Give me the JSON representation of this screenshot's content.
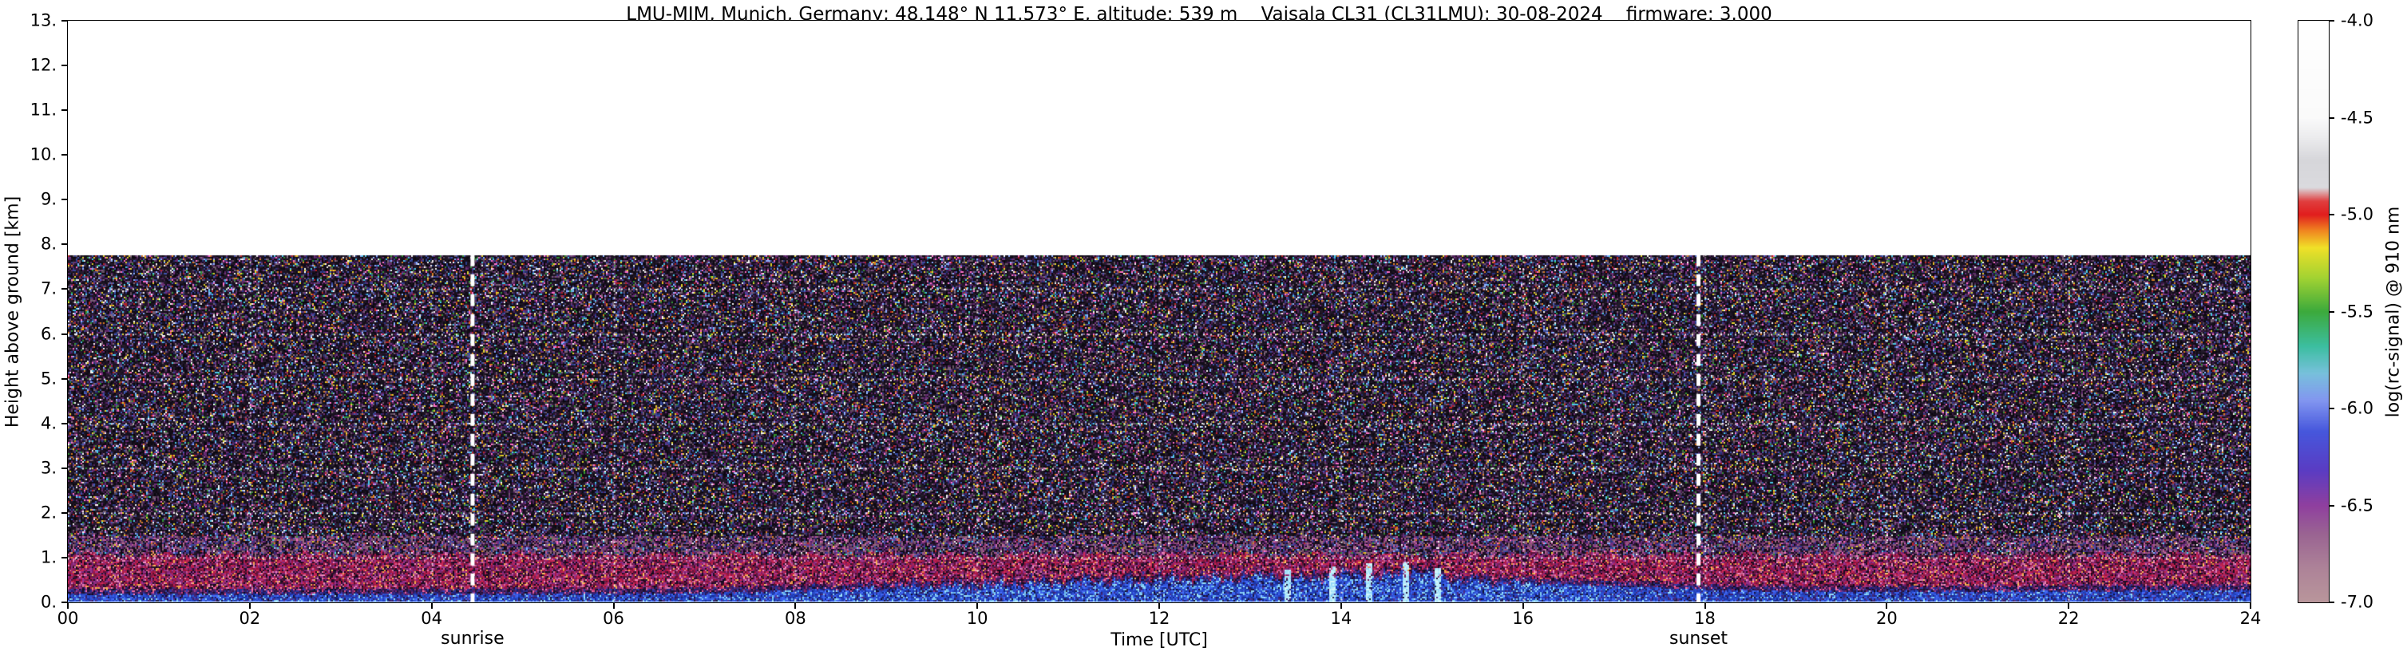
{
  "title": "LMU-MIM, Munich, Germany; 48.148° N 11.573° E, altitude: 539 m    Vaisala CL31 (CL31LMU): 30-08-2024    firmware: 3.000",
  "axes": {
    "x": {
      "label": "Time [UTC]",
      "min": 0,
      "max": 24,
      "tick_labels": [
        "00",
        "02",
        "04",
        "06",
        "08",
        "10",
        "12",
        "14",
        "16",
        "18",
        "20",
        "22",
        "24"
      ]
    },
    "y": {
      "label": "Height above ground [km]",
      "min": 0,
      "max": 13,
      "tick_labels": [
        "0.",
        "1.",
        "2.",
        "3.",
        "4.",
        "5.",
        "6.",
        "7.",
        "8.",
        "9.",
        "10.",
        "11.",
        "12.",
        "13."
      ]
    }
  },
  "colorbar": {
    "label": "log(rc-signal) @ 910 nm",
    "min": -7.0,
    "max": -4.0,
    "tick_labels": [
      "-4.0",
      "-4.5",
      "-5.0",
      "-5.5",
      "-6.0",
      "-6.5",
      "-7.0"
    ],
    "stops": [
      {
        "v": -7.0,
        "c": "#b9969b"
      },
      {
        "v": -6.82,
        "c": "#ad8298"
      },
      {
        "v": -6.65,
        "c": "#9a6492"
      },
      {
        "v": -6.5,
        "c": "#8f3f9f"
      },
      {
        "v": -6.32,
        "c": "#5a3cc3"
      },
      {
        "v": -6.12,
        "c": "#4657dc"
      },
      {
        "v": -5.96,
        "c": "#8296f0"
      },
      {
        "v": -5.82,
        "c": "#78c0dc"
      },
      {
        "v": -5.68,
        "c": "#3cbea0"
      },
      {
        "v": -5.5,
        "c": "#3caa3c"
      },
      {
        "v": -5.33,
        "c": "#a0d232"
      },
      {
        "v": -5.17,
        "c": "#f0e028"
      },
      {
        "v": -5.08,
        "c": "#f08220"
      },
      {
        "v": -5.0,
        "c": "#e11e1e"
      },
      {
        "v": -4.93,
        "c": "#e04040"
      },
      {
        "v": -4.86,
        "c": "#dadade"
      },
      {
        "v": -4.72,
        "c": "#d6d6da"
      },
      {
        "v": -4.6,
        "c": "#ececee"
      },
      {
        "v": -4.5,
        "c": "#fafafa"
      },
      {
        "v": -4.0,
        "c": "#ffffff"
      }
    ]
  },
  "annotations": {
    "sunrise": {
      "label": "sunrise",
      "time_utc": 4.45
    },
    "sunset": {
      "label": "sunset",
      "time_utc": 17.93
    }
  },
  "chart_data": {
    "type": "heatmap",
    "title": "LMU-MIM, Munich, Germany; 48.148° N 11.573° E, altitude: 539 m    Vaisala CL31 (CL31LMU): 30-08-2024    firmware: 3.000",
    "xlabel": "Time [UTC]",
    "ylabel": "Height above ground [km]",
    "zlabel": "log(rc-signal) @ 910 nm",
    "xlim": [
      0,
      24
    ],
    "ylim": [
      0,
      13
    ],
    "zlim": [
      -7.0,
      -4.0
    ],
    "data_top_km": 7.78,
    "aerosol_band_top_km": 1.08,
    "surface_layer_top_km": 0.05,
    "boundary_layer_top_km": {
      "hours": [
        0,
        6,
        7,
        8,
        9,
        10,
        11,
        12,
        12.8,
        13.2,
        13.6,
        14,
        14.4,
        14.8,
        15.2,
        16,
        17,
        18,
        19,
        21,
        24
      ],
      "km": [
        0.2,
        0.2,
        0.22,
        0.28,
        0.33,
        0.38,
        0.45,
        0.5,
        0.52,
        0.6,
        0.5,
        0.62,
        0.55,
        0.7,
        0.5,
        0.45,
        0.38,
        0.3,
        0.26,
        0.26,
        0.3
      ]
    },
    "plumes": [
      {
        "hour": 13.4,
        "top_km": 0.75
      },
      {
        "hour": 13.9,
        "top_km": 0.82
      },
      {
        "hour": 14.3,
        "top_km": 0.88
      },
      {
        "hour": 14.7,
        "top_km": 0.92
      },
      {
        "hour": 15.05,
        "top_km": 0.8
      }
    ],
    "sunrise_utc": 4.45,
    "sunset_utc": 17.93,
    "grid": {
      "x_step_hours": 2,
      "y_step_km": 1,
      "style": "dotted"
    },
    "description": "Vaisala CL31 ceilometer attenuated-backscatter quicklook: instrument noise speckle fills 0-7.8 km (white above 7.8 km); enhanced aerosol backscatter (magenta/red band, log(rc-signal) ~ -6.5) below ~1.1 km all day; strong near-surface signal (blue, ~ -6.0) whose top rises after sunrise to ~0.5-0.9 km between 08 and 16 UTC with convective plumes around 13-15 UTC, then subsides after sunset; dashed white vertical marker lines at sunrise (~04:27 UTC) and sunset (~17:56 UTC)."
  }
}
